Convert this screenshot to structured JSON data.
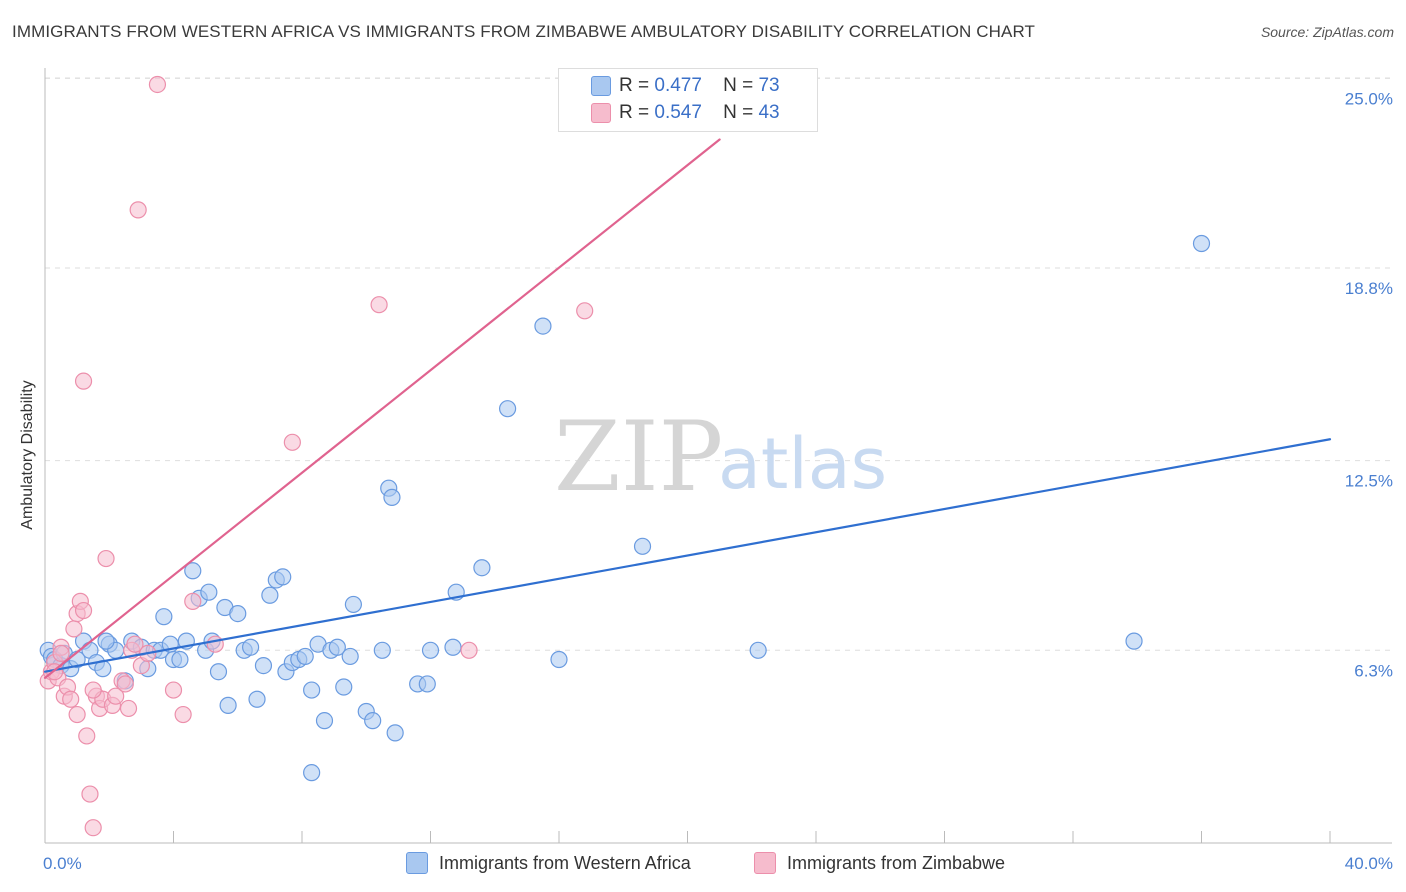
{
  "chart_data": {
    "type": "scatter",
    "title": "IMMIGRANTS FROM WESTERN AFRICA VS IMMIGRANTS FROM ZIMBABWE AMBULATORY DISABILITY CORRELATION CHART",
    "source": "Source: ZipAtlas.com",
    "xlabel": "",
    "ylabel": "Ambulatory Disability",
    "xlim": [
      0,
      40
    ],
    "ylim": [
      0,
      25.6
    ],
    "x_tick_labels": [
      "0.0%",
      "40.0%"
    ],
    "y_ticks": [
      6.3,
      12.5,
      18.8,
      25.0
    ],
    "y_tick_labels": [
      "6.3%",
      "12.5%",
      "18.8%",
      "25.0%"
    ],
    "grid": true,
    "watermark": {
      "zip": "ZIP",
      "atlas": "atlas"
    },
    "legend": {
      "r_label": "R =",
      "n_label": "N =",
      "entries": [
        {
          "name": "Immigrants from Western Africa",
          "r": "0.477",
          "n": "73",
          "color": "#a9c8f0",
          "edge": "#6a9be0"
        },
        {
          "name": "Immigrants from Zimbabwe",
          "r": "0.547",
          "n": "43",
          "color": "#f6bccd",
          "edge": "#ec8fab"
        }
      ]
    },
    "series": [
      {
        "name": "Immigrants from Western Africa",
        "fill": "#a9c8f0",
        "stroke": "#6a9be0",
        "line_color": "#2f6fd0",
        "trend": {
          "x": [
            0,
            40
          ],
          "y": [
            5.6,
            13.2
          ]
        },
        "points": [
          [
            0.1,
            6.3
          ],
          [
            0.2,
            6.1
          ],
          [
            0.3,
            6.0
          ],
          [
            0.5,
            5.8
          ],
          [
            0.6,
            6.2
          ],
          [
            0.8,
            5.7
          ],
          [
            1.0,
            6.0
          ],
          [
            1.2,
            6.6
          ],
          [
            1.4,
            6.3
          ],
          [
            1.6,
            5.9
          ],
          [
            1.8,
            5.7
          ],
          [
            2.0,
            6.5
          ],
          [
            2.2,
            6.3
          ],
          [
            2.5,
            5.3
          ],
          [
            2.7,
            6.6
          ],
          [
            3.0,
            6.4
          ],
          [
            3.2,
            5.7
          ],
          [
            3.4,
            6.3
          ],
          [
            3.6,
            6.3
          ],
          [
            3.7,
            7.4
          ],
          [
            3.9,
            6.5
          ],
          [
            4.0,
            6.0
          ],
          [
            4.2,
            6.0
          ],
          [
            4.4,
            6.6
          ],
          [
            4.6,
            8.9
          ],
          [
            4.8,
            8.0
          ],
          [
            5.0,
            6.3
          ],
          [
            5.1,
            8.2
          ],
          [
            5.2,
            6.6
          ],
          [
            5.4,
            5.6
          ],
          [
            5.6,
            7.7
          ],
          [
            5.7,
            4.5
          ],
          [
            6.0,
            7.5
          ],
          [
            6.2,
            6.3
          ],
          [
            6.4,
            6.4
          ],
          [
            6.6,
            4.7
          ],
          [
            6.8,
            5.8
          ],
          [
            7.0,
            8.1
          ],
          [
            7.2,
            8.6
          ],
          [
            7.4,
            8.7
          ],
          [
            7.5,
            5.6
          ],
          [
            7.7,
            5.9
          ],
          [
            7.9,
            6.0
          ],
          [
            8.1,
            6.1
          ],
          [
            8.3,
            5.0
          ],
          [
            8.5,
            6.5
          ],
          [
            8.7,
            4.0
          ],
          [
            8.9,
            6.3
          ],
          [
            9.1,
            6.4
          ],
          [
            9.3,
            5.1
          ],
          [
            9.5,
            6.1
          ],
          [
            9.6,
            7.8
          ],
          [
            10.0,
            4.3
          ],
          [
            10.2,
            4.0
          ],
          [
            10.5,
            6.3
          ],
          [
            10.7,
            11.6
          ],
          [
            10.8,
            11.3
          ],
          [
            10.9,
            3.6
          ],
          [
            11.6,
            5.2
          ],
          [
            11.9,
            5.2
          ],
          [
            12.0,
            6.3
          ],
          [
            12.7,
            6.4
          ],
          [
            12.8,
            8.2
          ],
          [
            13.6,
            9.0
          ],
          [
            14.4,
            14.2
          ],
          [
            15.5,
            16.9
          ],
          [
            16.0,
            6.0
          ],
          [
            18.6,
            9.7
          ],
          [
            22.2,
            6.3
          ],
          [
            8.3,
            2.3
          ],
          [
            33.9,
            6.6
          ],
          [
            36.0,
            19.6
          ],
          [
            1.9,
            6.6
          ]
        ]
      },
      {
        "name": "Immigrants from Zimbabwe",
        "fill": "#f6bccd",
        "stroke": "#ec8fab",
        "line_color": "#e0638f",
        "trend": {
          "x": [
            0,
            21
          ],
          "y": [
            5.4,
            23.0
          ]
        },
        "points": [
          [
            0.1,
            5.3
          ],
          [
            0.2,
            5.6
          ],
          [
            0.3,
            5.9
          ],
          [
            0.4,
            5.4
          ],
          [
            0.5,
            6.4
          ],
          [
            0.6,
            4.8
          ],
          [
            0.7,
            5.1
          ],
          [
            0.8,
            4.7
          ],
          [
            0.9,
            7.0
          ],
          [
            1.0,
            4.2
          ],
          [
            1.0,
            7.5
          ],
          [
            1.1,
            7.9
          ],
          [
            1.2,
            7.6
          ],
          [
            1.3,
            3.5
          ],
          [
            1.4,
            1.6
          ],
          [
            1.5,
            0.5
          ],
          [
            1.6,
            4.8
          ],
          [
            1.7,
            4.4
          ],
          [
            1.8,
            4.7
          ],
          [
            1.9,
            9.3
          ],
          [
            2.1,
            4.5
          ],
          [
            2.2,
            4.8
          ],
          [
            2.4,
            5.3
          ],
          [
            2.5,
            5.2
          ],
          [
            2.6,
            4.4
          ],
          [
            2.7,
            6.3
          ],
          [
            2.8,
            6.5
          ],
          [
            3.0,
            5.8
          ],
          [
            3.2,
            6.2
          ],
          [
            0.3,
            5.6
          ],
          [
            1.2,
            15.1
          ],
          [
            2.9,
            20.7
          ],
          [
            3.5,
            24.8
          ],
          [
            4.0,
            5.0
          ],
          [
            4.3,
            4.2
          ],
          [
            4.6,
            7.9
          ],
          [
            5.3,
            6.5
          ],
          [
            7.7,
            13.1
          ],
          [
            10.4,
            17.6
          ],
          [
            13.2,
            6.3
          ],
          [
            16.8,
            17.4
          ],
          [
            0.5,
            6.2
          ],
          [
            1.5,
            5.0
          ]
        ]
      }
    ]
  }
}
